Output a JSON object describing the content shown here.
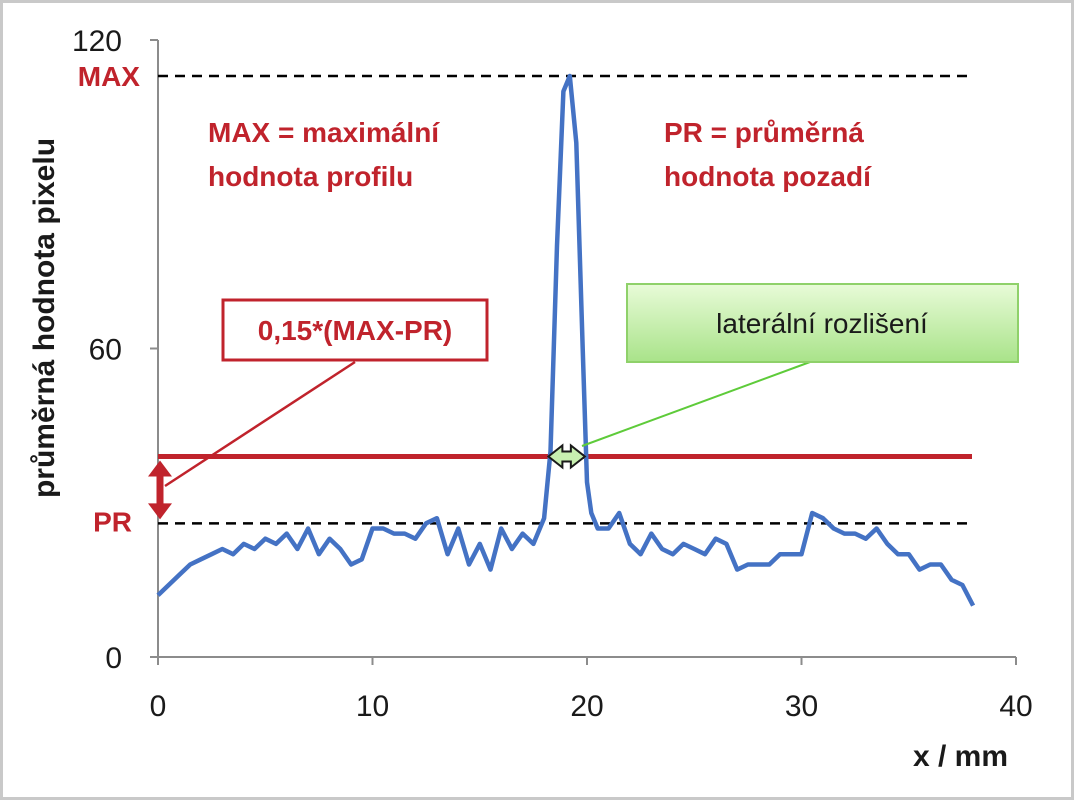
{
  "chart_data": {
    "type": "line",
    "title": "",
    "xlabel": "x / mm",
    "ylabel": "průměrná hodnota pixelu",
    "xlim": [
      0,
      40
    ],
    "ylim": [
      0,
      120
    ],
    "x_ticks": [
      "0",
      "10",
      "20",
      "30",
      "40"
    ],
    "y_ticks": [
      "0",
      "60",
      "120"
    ],
    "grid": false,
    "series": [
      {
        "color": "#4472c4",
        "x": [
          0,
          0.5,
          1,
          1.5,
          2,
          2.5,
          3,
          3.5,
          4,
          4.5,
          5,
          5.5,
          6,
          6.5,
          7,
          7.5,
          8,
          8.5,
          9,
          9.5,
          10,
          10.5,
          11,
          11.5,
          12,
          12.5,
          13,
          13.5,
          14,
          14.5,
          15,
          15.5,
          16,
          16.5,
          17,
          17.5,
          18,
          18.3,
          18.6,
          18.9,
          19.2,
          19.5,
          19.8,
          20.0,
          20.2,
          20.5,
          21,
          21.5,
          22,
          22.5,
          23,
          23.5,
          24,
          24.5,
          25,
          25.5,
          26,
          26.5,
          27,
          27.5,
          28,
          28.5,
          29,
          29.5,
          30,
          30.5,
          31,
          31.5,
          32,
          32.5,
          33,
          33.5,
          34,
          34.5,
          35,
          35.5,
          36,
          36.5,
          37,
          37.5,
          38
        ],
        "y": [
          12,
          14,
          16,
          18,
          19,
          20,
          21,
          20,
          22,
          21,
          23,
          22,
          24,
          21,
          25,
          20,
          23,
          21,
          18,
          19,
          25,
          25,
          24,
          24,
          23,
          26,
          27,
          20,
          25,
          18,
          22,
          17,
          25,
          21,
          24,
          22,
          27,
          40,
          80,
          110,
          113,
          100,
          60,
          34,
          28,
          25,
          25,
          28,
          22,
          20,
          24,
          21,
          20,
          22,
          21,
          20,
          23,
          22,
          17,
          18,
          18,
          18,
          20,
          20,
          20,
          28,
          27,
          25,
          24,
          24,
          23,
          25,
          22,
          20,
          20,
          17,
          18,
          18,
          15,
          14,
          10
        ]
      }
    ],
    "reference_lines": [
      {
        "name": "MAX",
        "y": 113,
        "style": "dashed",
        "color": "#000000"
      },
      {
        "name": "PR",
        "y": 26,
        "style": "dashed",
        "color": "#000000"
      },
      {
        "name": "threshold",
        "y": 39,
        "style": "solid",
        "color": "#c0232c"
      }
    ],
    "resolution_span": [
      18.2,
      19.9
    ],
    "labels": {
      "max_tick": "MAX",
      "pr_tick": "PR",
      "max_note_line1": "MAX = maximální",
      "max_note_line2": "hodnota profilu",
      "pr_note_line1": "PR = průměrná",
      "pr_note_line2": "hodnota pozadí",
      "formula_box": "0,15*(MAX-PR)",
      "resolution_box": "laterální rozlišení"
    }
  },
  "colors": {
    "accent_red": "#c0232c",
    "series_blue": "#4472c4",
    "box_green": "#c8f0b0"
  }
}
